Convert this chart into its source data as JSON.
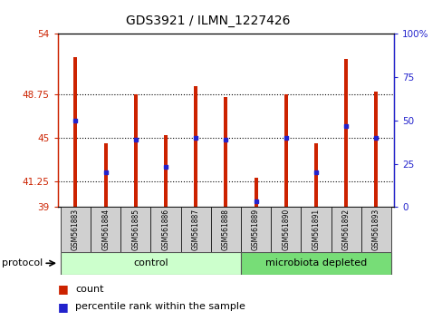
{
  "title": "GDS3921 / ILMN_1227426",
  "samples": [
    "GSM561883",
    "GSM561884",
    "GSM561885",
    "GSM561886",
    "GSM561887",
    "GSM561888",
    "GSM561889",
    "GSM561890",
    "GSM561891",
    "GSM561892",
    "GSM561893"
  ],
  "bar_heights": [
    52.0,
    44.5,
    48.75,
    45.2,
    49.5,
    48.5,
    41.5,
    48.75,
    44.5,
    51.8,
    49.0
  ],
  "blue_dot_values": [
    46.5,
    42.0,
    44.8,
    42.5,
    45.0,
    44.8,
    39.5,
    45.0,
    42.0,
    46.0,
    45.0
  ],
  "ylim_left": [
    39,
    54
  ],
  "ylim_right": [
    0,
    100
  ],
  "yticks_left": [
    39,
    41.25,
    45,
    48.75,
    54
  ],
  "yticks_right": [
    0,
    25,
    50,
    75,
    100
  ],
  "ytick_labels_right": [
    "0",
    "25",
    "50",
    "75",
    "100%"
  ],
  "bar_color": "#cc2200",
  "dot_color": "#2222cc",
  "group_control": 6,
  "group_microbiota": 5,
  "control_color": "#ccffcc",
  "microbiota_color": "#77dd77",
  "protocol_label": "protocol",
  "control_label": "control",
  "microbiota_label": "microbiota depleted",
  "background_color": "#ffffff",
  "bar_width": 0.12,
  "baseline": 39,
  "gridline_values": [
    41.25,
    45,
    48.75
  ],
  "label_box_color": "#d0d0d0",
  "label_fontsize": 5.5,
  "title_fontsize": 10
}
